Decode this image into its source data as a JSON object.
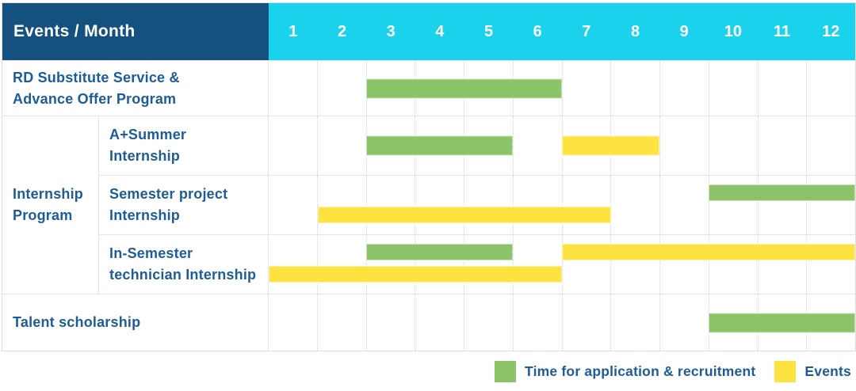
{
  "chart_data": {
    "type": "bar",
    "subtype": "gantt-schedule-table",
    "title": "Events / Month",
    "x_axis": {
      "label": "Month",
      "range": [
        1,
        12
      ]
    },
    "months": [
      "1",
      "2",
      "3",
      "4",
      "5",
      "6",
      "7",
      "8",
      "9",
      "10",
      "11",
      "12"
    ],
    "rows": [
      {
        "group": "",
        "group_span": 0,
        "in_group": false,
        "label": "RD Substitute Service &\nAdvance Offer Program",
        "bars": [
          {
            "kind": "recruitment",
            "start": 3,
            "end": 6,
            "lane": "center"
          }
        ]
      },
      {
        "group": "Internship\nProgram",
        "group_span": 3,
        "in_group": true,
        "label": "A+Summer\nInternship",
        "bars": [
          {
            "kind": "recruitment",
            "start": 3,
            "end": 5,
            "lane": "center"
          },
          {
            "kind": "event",
            "start": 7,
            "end": 8,
            "lane": "center"
          }
        ]
      },
      {
        "group": "",
        "group_span": 0,
        "in_group": true,
        "label": "Semester project\nInternship",
        "bars": [
          {
            "kind": "recruitment",
            "start": 10,
            "end": 12,
            "lane": "top"
          },
          {
            "kind": "event",
            "start": 2,
            "end": 7,
            "lane": "bottom"
          }
        ]
      },
      {
        "group": "",
        "group_span": 0,
        "in_group": true,
        "label": "In-Semester\ntechnician Internship",
        "bars": [
          {
            "kind": "recruitment",
            "start": 3,
            "end": 5,
            "lane": "top"
          },
          {
            "kind": "event",
            "start": 7,
            "end": 12,
            "lane": "top"
          },
          {
            "kind": "event",
            "start": 1,
            "end": 6,
            "lane": "bottom"
          }
        ]
      },
      {
        "group": "",
        "group_span": 0,
        "in_group": false,
        "label": "Talent scholarship",
        "bars": [
          {
            "kind": "recruitment",
            "start": 10,
            "end": 12,
            "lane": "center"
          }
        ]
      }
    ],
    "legend": [
      {
        "kind": "recruitment",
        "label": "Time for application & recruitment"
      },
      {
        "kind": "event",
        "label": "Events"
      }
    ],
    "colors": {
      "recruitment": "#8cc368",
      "event": "#fde33f",
      "header_bg": "#15517f",
      "months_bg": "#1bd2ec",
      "text_blue": "#1d5c99"
    }
  }
}
